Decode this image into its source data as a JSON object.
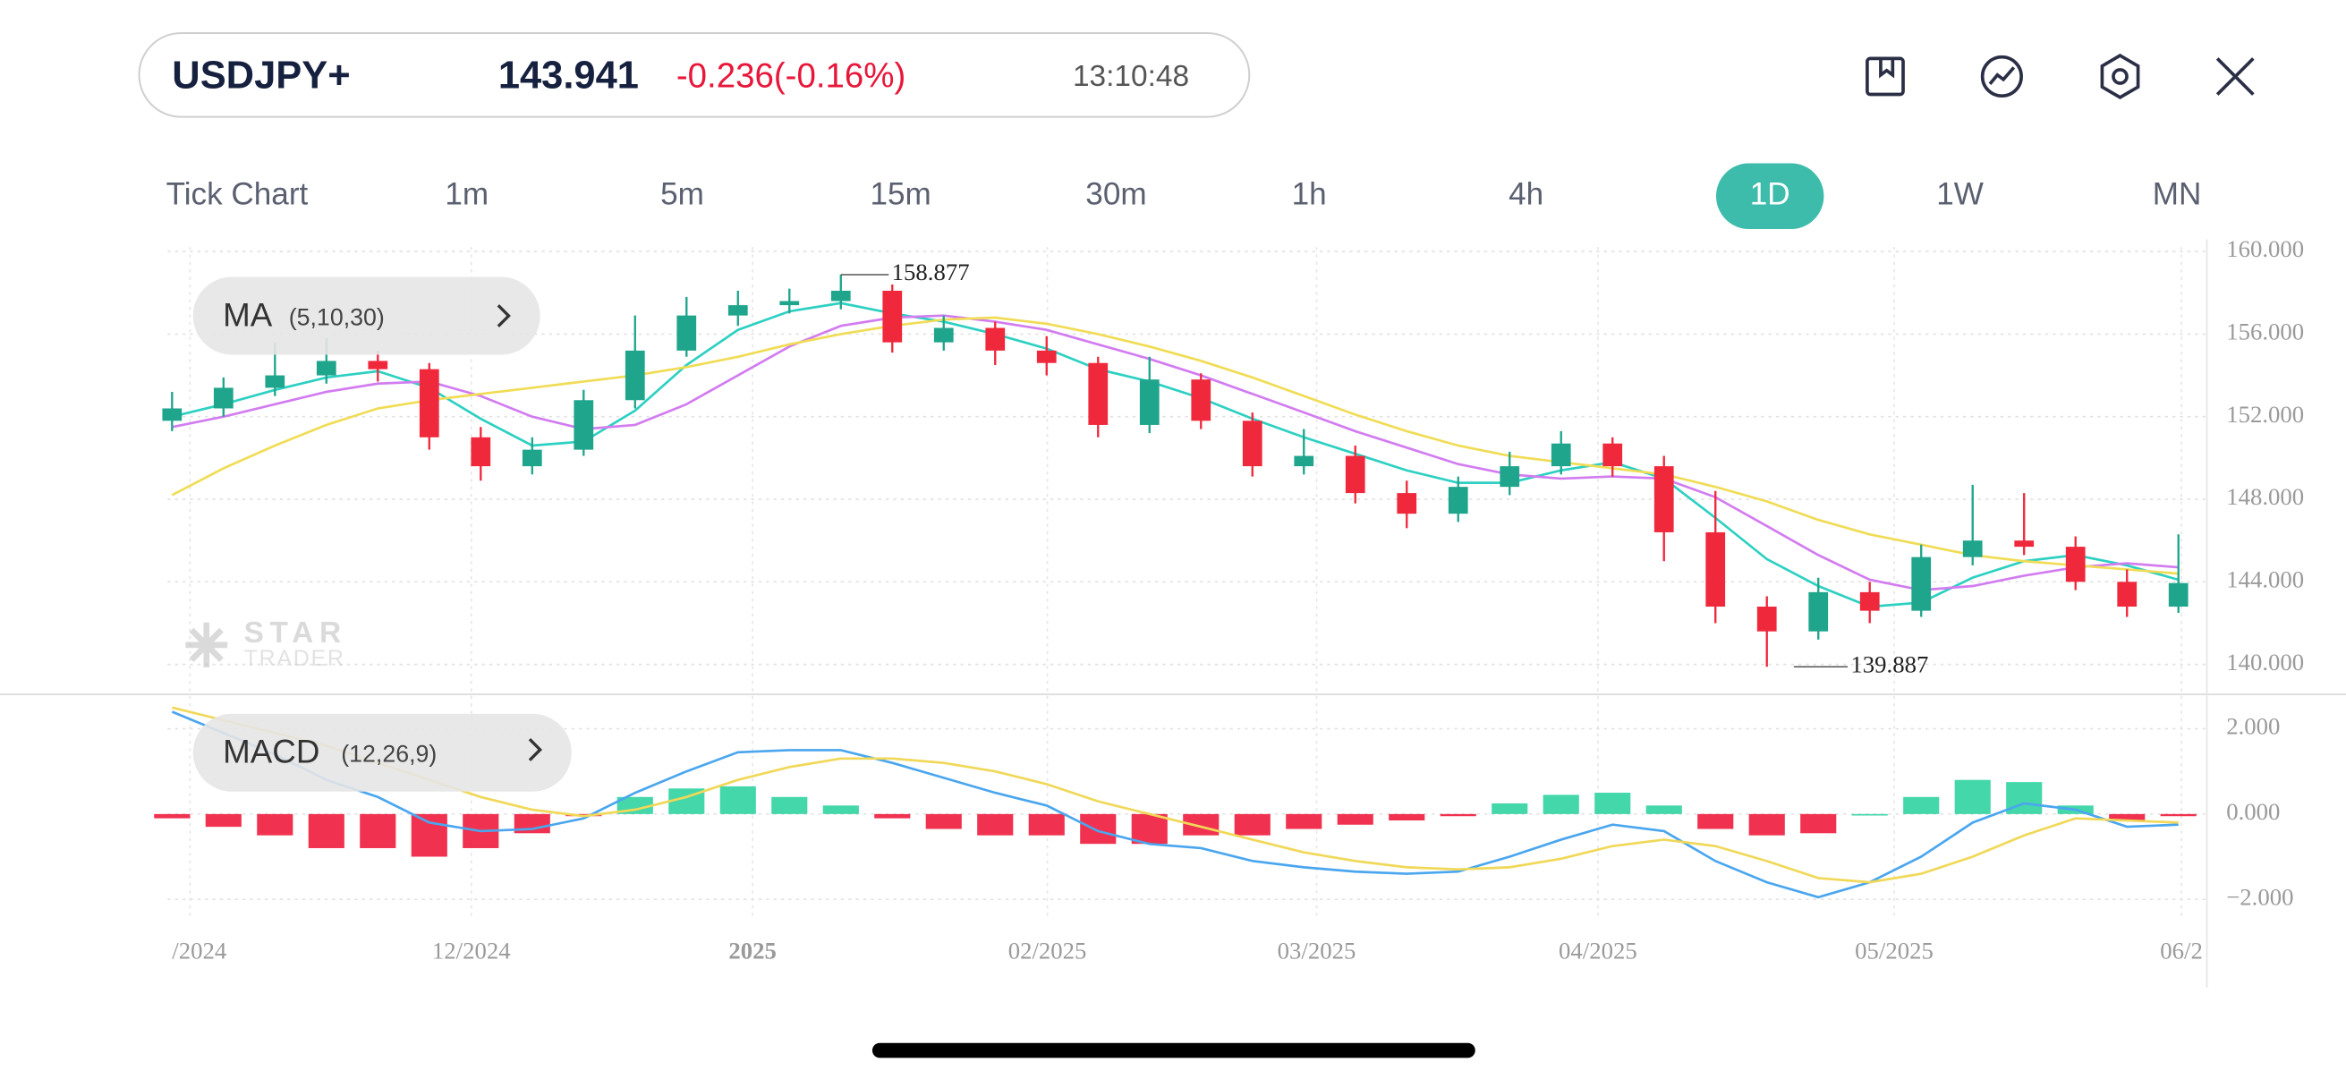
{
  "header": {
    "symbol": "USDJPY+",
    "price": "143.941",
    "change": "-0.236(-0.16%)",
    "time": "13:10:48"
  },
  "timeframes": {
    "items": [
      "Tick Chart",
      "1m",
      "5m",
      "15m",
      "30m",
      "1h",
      "4h",
      "1D",
      "1W",
      "MN"
    ],
    "selected": "1D"
  },
  "watermark": [
    "STAR",
    "TRADER"
  ],
  "chart_data": [
    {
      "type": "candlestick",
      "legend": {
        "name": "MA",
        "params": "(5,10,30)"
      },
      "up_color": "#1fa58c",
      "down_color": "#f0283c",
      "candles": [
        [
          151.8,
          153.2,
          151.3,
          152.4
        ],
        [
          152.4,
          153.9,
          152.0,
          153.4
        ],
        [
          153.4,
          155.6,
          153.0,
          154.0
        ],
        [
          154.0,
          155.8,
          153.6,
          154.7
        ],
        [
          154.7,
          155.2,
          153.7,
          154.3
        ],
        [
          154.3,
          154.6,
          150.4,
          151.0
        ],
        [
          151.0,
          151.5,
          148.9,
          149.6
        ],
        [
          149.6,
          151.0,
          149.2,
          150.4
        ],
        [
          150.4,
          153.3,
          150.1,
          152.8
        ],
        [
          152.8,
          156.9,
          152.4,
          155.2
        ],
        [
          155.2,
          157.8,
          154.9,
          156.9
        ],
        [
          156.9,
          158.1,
          156.4,
          157.4
        ],
        [
          157.4,
          158.2,
          157.0,
          157.6
        ],
        [
          157.6,
          158.877,
          157.2,
          158.1
        ],
        [
          158.1,
          158.4,
          155.1,
          155.6
        ],
        [
          155.6,
          156.9,
          155.2,
          156.3
        ],
        [
          156.3,
          156.6,
          154.5,
          155.2
        ],
        [
          155.2,
          155.9,
          154.0,
          154.6
        ],
        [
          154.6,
          154.9,
          151.0,
          151.6
        ],
        [
          151.6,
          154.9,
          151.2,
          153.8
        ],
        [
          153.8,
          154.1,
          151.4,
          151.8
        ],
        [
          151.8,
          152.2,
          149.1,
          149.6
        ],
        [
          149.6,
          151.4,
          149.2,
          150.1
        ],
        [
          150.1,
          150.6,
          147.8,
          148.3
        ],
        [
          148.3,
          148.9,
          146.6,
          147.3
        ],
        [
          147.3,
          149.1,
          146.9,
          148.6
        ],
        [
          148.6,
          150.3,
          148.2,
          149.6
        ],
        [
          149.6,
          151.3,
          149.2,
          150.7
        ],
        [
          150.7,
          151.0,
          149.1,
          149.6
        ],
        [
          149.6,
          150.1,
          145.0,
          146.4
        ],
        [
          146.4,
          148.4,
          142.0,
          142.8
        ],
        [
          142.8,
          143.3,
          139.887,
          141.6
        ],
        [
          141.6,
          144.2,
          141.2,
          143.5
        ],
        [
          143.5,
          144.0,
          142.0,
          142.6
        ],
        [
          142.6,
          145.8,
          142.3,
          145.2
        ],
        [
          145.2,
          148.7,
          144.8,
          146.0
        ],
        [
          146.0,
          148.3,
          145.3,
          145.7
        ],
        [
          145.7,
          146.2,
          143.6,
          144.0
        ],
        [
          144.0,
          144.6,
          142.3,
          142.8
        ],
        [
          142.8,
          146.3,
          142.5,
          143.941
        ]
      ],
      "high_index": 13,
      "low_index": 31,
      "series": [
        {
          "name": "MA5",
          "color": "#2dd0c2",
          "values": [
            152.0,
            152.6,
            153.3,
            153.9,
            154.2,
            153.4,
            151.9,
            150.6,
            150.8,
            152.3,
            154.5,
            156.2,
            157.1,
            157.5,
            157.0,
            156.6,
            156.0,
            155.3,
            154.3,
            153.7,
            152.9,
            151.9,
            151.0,
            150.2,
            149.4,
            148.8,
            148.8,
            149.4,
            149.8,
            149.0,
            147.1,
            145.1,
            143.8,
            142.8,
            143.0,
            144.2,
            145.0,
            145.3,
            144.8,
            144.1
          ]
        },
        {
          "name": "MA10",
          "color": "#d27cf0",
          "values": [
            151.5,
            152.0,
            152.6,
            153.2,
            153.6,
            153.7,
            153.0,
            152.0,
            151.4,
            151.6,
            152.6,
            154.0,
            155.4,
            156.4,
            156.8,
            156.9,
            156.6,
            156.2,
            155.5,
            154.8,
            154.0,
            153.1,
            152.2,
            151.3,
            150.5,
            149.7,
            149.2,
            149.0,
            149.1,
            149.0,
            148.1,
            146.7,
            145.3,
            144.1,
            143.6,
            143.8,
            144.3,
            144.7,
            144.9,
            144.7
          ]
        },
        {
          "name": "MA30",
          "color": "#f0dc55",
          "values": [
            148.2,
            149.5,
            150.6,
            151.6,
            152.4,
            152.8,
            153.1,
            153.4,
            153.7,
            154.0,
            154.4,
            154.9,
            155.5,
            156.0,
            156.4,
            156.7,
            156.8,
            156.5,
            156.0,
            155.4,
            154.7,
            153.9,
            153.0,
            152.1,
            151.3,
            150.6,
            150.1,
            149.8,
            149.5,
            149.2,
            148.6,
            147.9,
            147.0,
            146.3,
            145.8,
            145.3,
            145.0,
            144.8,
            144.6,
            144.4
          ]
        }
      ],
      "ylim": [
        140,
        160
      ],
      "yticks": [
        {
          "value": 140,
          "label": "140.000"
        },
        {
          "value": 144,
          "label": "144.000"
        },
        {
          "value": 148,
          "label": "148.000"
        },
        {
          "value": 152,
          "label": "152.000"
        },
        {
          "value": 156,
          "label": "156.000"
        },
        {
          "value": 160,
          "label": "160.000"
        }
      ],
      "xtick_labels": [
        "/2024",
        "12/2024",
        "2025",
        "02/2025",
        "03/2025",
        "04/2025",
        "05/2025",
        "06/2"
      ],
      "grid": true
    },
    {
      "type": "macd",
      "legend": {
        "name": "MACD",
        "params": "(12,26,9)"
      },
      "series": [
        {
          "name": "MACD",
          "color": "#4aa6ee",
          "values": [
            2.4,
            1.9,
            1.4,
            0.8,
            0.4,
            -0.2,
            -0.4,
            -0.35,
            -0.1,
            0.5,
            1.0,
            1.45,
            1.5,
            1.5,
            1.2,
            0.85,
            0.5,
            0.2,
            -0.4,
            -0.7,
            -0.8,
            -1.1,
            -1.25,
            -1.35,
            -1.4,
            -1.35,
            -1.0,
            -0.6,
            -0.25,
            -0.4,
            -1.1,
            -1.6,
            -1.95,
            -1.6,
            -1.0,
            -0.2,
            0.25,
            0.1,
            -0.3,
            -0.25
          ]
        },
        {
          "name": "Signal",
          "color": "#f0d858",
          "values": [
            2.5,
            2.2,
            1.9,
            1.6,
            1.2,
            0.8,
            0.4,
            0.1,
            -0.05,
            0.1,
            0.4,
            0.8,
            1.1,
            1.3,
            1.3,
            1.2,
            1.0,
            0.7,
            0.3,
            0.0,
            -0.3,
            -0.6,
            -0.9,
            -1.1,
            -1.25,
            -1.3,
            -1.25,
            -1.05,
            -0.75,
            -0.6,
            -0.75,
            -1.1,
            -1.5,
            -1.6,
            -1.4,
            -1.0,
            -0.5,
            -0.1,
            -0.15,
            -0.2
          ]
        }
      ],
      "histogram": {
        "up_color": "#2fd3a0",
        "down_color": "#ee1c3d",
        "values": [
          -0.1,
          -0.3,
          -0.5,
          -0.8,
          -0.8,
          -1.0,
          -0.8,
          -0.45,
          -0.05,
          0.4,
          0.6,
          0.65,
          0.4,
          0.2,
          -0.1,
          -0.35,
          -0.5,
          -0.5,
          -0.7,
          -0.7,
          -0.5,
          -0.5,
          -0.35,
          -0.25,
          -0.15,
          -0.05,
          0.25,
          0.45,
          0.5,
          0.2,
          -0.35,
          -0.5,
          -0.45,
          0.0,
          0.4,
          0.8,
          0.75,
          0.2,
          -0.15,
          -0.05
        ]
      },
      "ylim": [
        -2.5,
        2.5
      ],
      "yticks": [
        {
          "value": -2,
          "label": "−2.000"
        },
        {
          "value": 0,
          "label": "0.000"
        },
        {
          "value": 2,
          "label": "2.000"
        }
      ],
      "grid": true
    }
  ]
}
